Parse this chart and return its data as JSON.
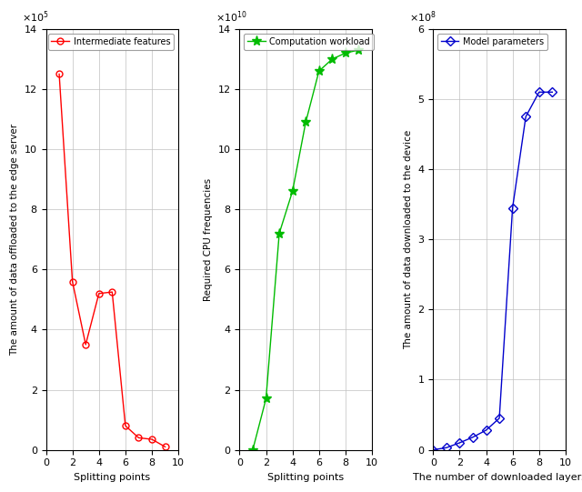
{
  "plot1": {
    "x": [
      1,
      2,
      3,
      4,
      5,
      6,
      7,
      8,
      9
    ],
    "y": [
      1250000,
      560000,
      350000,
      520000,
      525000,
      80000,
      40000,
      35000,
      10000
    ],
    "color": "#FF0000",
    "marker": "o",
    "label": "Intermediate features",
    "xlabel": "Splitting points",
    "ylabel": "The amount of data offloaded to the edge server",
    "xlim": [
      0,
      10
    ],
    "ylim": [
      0,
      1400000
    ],
    "yticks": [
      0,
      200000,
      400000,
      600000,
      800000,
      1000000,
      1200000,
      1400000
    ],
    "ytick_labels": [
      "0",
      "2",
      "4",
      "6",
      "8",
      "10",
      "12",
      "14"
    ],
    "exponent": 5
  },
  "plot2": {
    "x": [
      1,
      2,
      3,
      4,
      5,
      6,
      7,
      8,
      9
    ],
    "y": [
      0,
      17000000000,
      72000000000,
      86000000000,
      109000000000,
      126000000000,
      130000000000,
      132000000000,
      133000000000
    ],
    "color": "#00BB00",
    "marker": "*",
    "label": "Computation workload",
    "xlabel": "Splitting points",
    "ylabel": "Required CPU frequencies",
    "xlim": [
      0,
      10
    ],
    "ylim": [
      0,
      140000000000
    ],
    "yticks": [
      0,
      20000000000,
      40000000000,
      60000000000,
      80000000000,
      100000000000,
      120000000000,
      140000000000
    ],
    "ytick_labels": [
      "0",
      "2",
      "4",
      "6",
      "8",
      "10",
      "12",
      "14"
    ],
    "exponent": 10
  },
  "plot3": {
    "x": [
      0,
      1,
      2,
      3,
      4,
      5,
      6,
      7,
      8,
      9
    ],
    "y": [
      0,
      3000000,
      10000000,
      18000000,
      28000000,
      45000000,
      345000000,
      475000000,
      510000000,
      510000000
    ],
    "color": "#0000CC",
    "marker": "D",
    "label": "Model parameters",
    "xlabel": "The number of downloaded layers",
    "ylabel": "The amount of data downloaded to the device",
    "xlim": [
      0,
      10
    ],
    "ylim": [
      0,
      600000000
    ],
    "yticks": [
      0,
      100000000,
      200000000,
      300000000,
      400000000,
      500000000,
      600000000
    ],
    "ytick_labels": [
      "0",
      "1",
      "2",
      "3",
      "4",
      "5",
      "6"
    ],
    "exponent": 8
  },
  "background_color": "#ffffff",
  "grid_color": "#C0C0C0"
}
